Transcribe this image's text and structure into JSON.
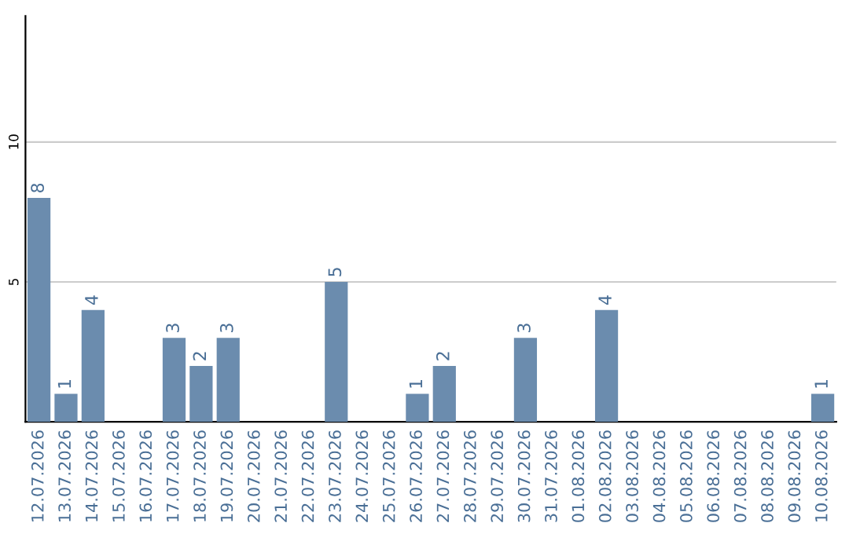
{
  "chart_data": {
    "type": "bar",
    "categories": [
      "12.07.2026",
      "13.07.2026",
      "14.07.2026",
      "15.07.2026",
      "16.07.2026",
      "17.07.2026",
      "18.07.2026",
      "19.07.2026",
      "20.07.2026",
      "21.07.2026",
      "22.07.2026",
      "23.07.2026",
      "24.07.2026",
      "25.07.2026",
      "26.07.2026",
      "27.07.2026",
      "28.07.2026",
      "29.07.2026",
      "30.07.2026",
      "31.07.2026",
      "01.08.2026",
      "02.08.2026",
      "03.08.2026",
      "04.08.2026",
      "05.08.2026",
      "06.08.2026",
      "07.08.2026",
      "08.08.2026",
      "09.08.2026",
      "10.08.2026"
    ],
    "values": [
      8,
      1,
      4,
      0,
      0,
      3,
      2,
      3,
      0,
      0,
      0,
      5,
      0,
      0,
      1,
      2,
      0,
      0,
      3,
      0,
      0,
      4,
      0,
      0,
      0,
      0,
      0,
      0,
      0,
      1
    ],
    "value_labels": [
      "8",
      "1",
      "4",
      null,
      null,
      "3",
      "2",
      "3",
      null,
      null,
      null,
      "5",
      null,
      null,
      "1",
      "2",
      null,
      null,
      "3",
      null,
      null,
      "4",
      null,
      null,
      null,
      null,
      null,
      null,
      null,
      "1"
    ],
    "color": "#6b8cae",
    "ylim": [
      0,
      14.5
    ],
    "yticks": [
      5,
      10
    ],
    "grid": "y"
  }
}
